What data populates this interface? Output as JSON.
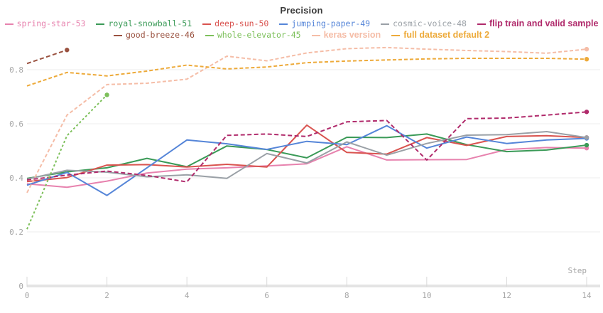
{
  "title": "Precision",
  "colors": {
    "title_text": "#3b3b3b",
    "axis_text": "#a6a6a6",
    "gridline": "#ededed",
    "axis_line": "#e4e4e4",
    "tick_mark": "#d9d9d9"
  },
  "chart_data": {
    "type": "line",
    "title": "Precision",
    "xlabel": "Step",
    "ylabel": "",
    "x": [
      0,
      1,
      2,
      3,
      4,
      5,
      6,
      7,
      8,
      9,
      10,
      11,
      12,
      13,
      14
    ],
    "x_ticks": [
      0,
      2,
      4,
      6,
      8,
      10,
      12,
      14
    ],
    "y_ticks": [
      0.2,
      0.4,
      0.6,
      0.8
    ],
    "y_origin_label": "0",
    "xlim": [
      0,
      14
    ],
    "ylim": [
      0,
      1.05
    ],
    "grid": "horizontal",
    "legend_position": "top",
    "series": [
      {
        "name": "spring-star-53",
        "color": "#e782ae",
        "line_style": "solid",
        "renamed": false,
        "values": [
          0.378,
          0.365,
          0.388,
          0.418,
          0.432,
          0.437,
          0.444,
          0.452,
          0.515,
          0.466,
          0.467,
          0.468,
          0.505,
          0.512,
          0.51
        ]
      },
      {
        "name": "royal-snowball-51",
        "color": "#3a9a57",
        "line_style": "solid",
        "renamed": false,
        "values": [
          0.398,
          0.422,
          0.437,
          0.472,
          0.441,
          0.518,
          0.505,
          0.474,
          0.55,
          0.549,
          0.562,
          0.523,
          0.497,
          0.503,
          0.521
        ]
      },
      {
        "name": "deep-sun-50",
        "color": "#d9534f",
        "line_style": "solid",
        "renamed": false,
        "values": [
          0.386,
          0.401,
          0.447,
          0.449,
          0.44,
          0.45,
          0.44,
          0.595,
          0.494,
          0.488,
          0.549,
          0.52,
          0.553,
          0.556,
          0.549
        ]
      },
      {
        "name": "jumping-paper-49",
        "color": "#5585d8",
        "line_style": "solid",
        "renamed": false,
        "values": [
          0.373,
          0.42,
          0.335,
          0.437,
          0.54,
          0.526,
          0.505,
          0.535,
          0.523,
          0.593,
          0.51,
          0.551,
          0.527,
          0.54,
          0.546
        ]
      },
      {
        "name": "cosmic-voice-48",
        "color": "#9aa0a6",
        "line_style": "solid",
        "renamed": false,
        "values": [
          0.395,
          0.428,
          0.421,
          0.404,
          0.411,
          0.398,
          0.49,
          0.455,
          0.533,
          0.484,
          0.527,
          0.558,
          0.56,
          0.571,
          0.549
        ]
      },
      {
        "name": "flip train and valid sample",
        "color": "#b02a6b",
        "line_style": "dashed",
        "dash": "6 3.5",
        "renamed": true,
        "values": [
          0.392,
          0.41,
          0.425,
          0.409,
          0.385,
          0.557,
          0.562,
          0.553,
          0.607,
          0.612,
          0.466,
          0.619,
          0.621,
          0.632,
          0.644
        ]
      },
      {
        "name": "good-breeze-46",
        "color": "#9a5240",
        "line_style": "dashed",
        "dash": "6 3.5",
        "renamed": false,
        "x": [
          0,
          1
        ],
        "values": [
          0.823,
          0.873
        ]
      },
      {
        "name": "whole-elevator-45",
        "color": "#7dc05b",
        "line_style": "dashed",
        "dash": "3 3",
        "renamed": false,
        "x": [
          0,
          1,
          2
        ],
        "values": [
          0.21,
          0.556,
          0.707
        ]
      },
      {
        "name": "keras version",
        "color": "#f5bda7",
        "line_style": "dashed",
        "dash": "5 3",
        "renamed": true,
        "values": [
          0.345,
          0.632,
          0.745,
          0.75,
          0.765,
          0.85,
          0.833,
          0.862,
          0.878,
          0.882,
          0.876,
          0.871,
          0.867,
          0.861,
          0.876
        ]
      },
      {
        "name": "full dataset default 2",
        "color": "#edaa3a",
        "line_style": "dashed",
        "dash": "5 3",
        "renamed": true,
        "values": [
          0.74,
          0.79,
          0.777,
          0.795,
          0.817,
          0.803,
          0.81,
          0.826,
          0.832,
          0.836,
          0.84,
          0.842,
          0.842,
          0.842,
          0.839
        ]
      }
    ],
    "legend_rows": [
      [
        0,
        1,
        2,
        3,
        4,
        5
      ],
      [
        6,
        7,
        8,
        9
      ]
    ]
  }
}
